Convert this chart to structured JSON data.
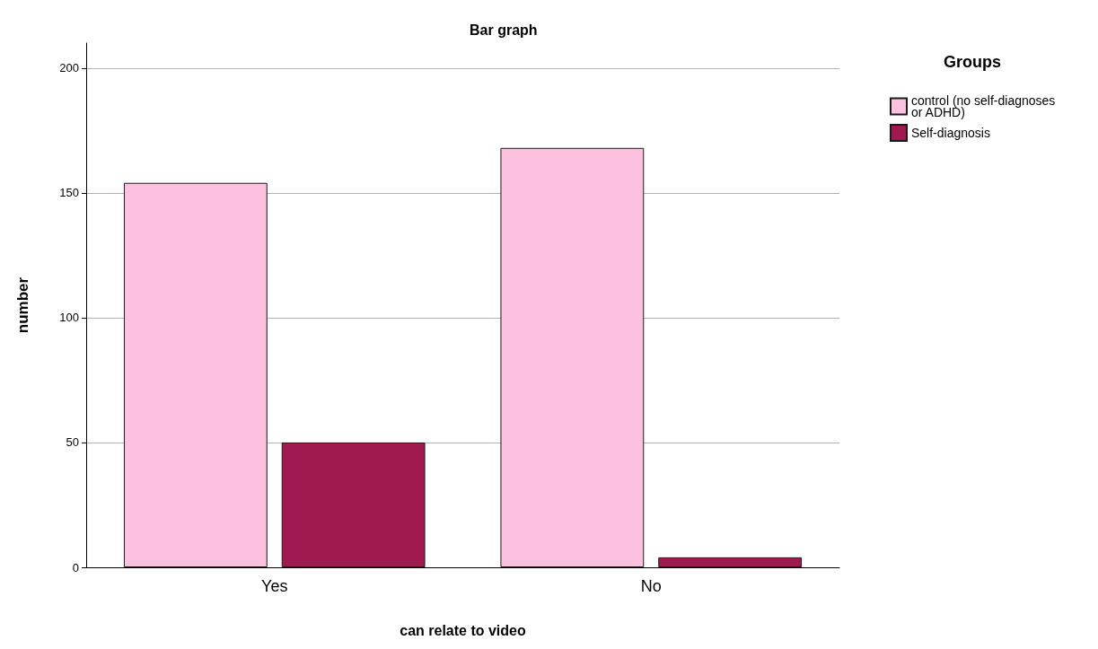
{
  "chart_data": {
    "type": "bar",
    "title": "Bar graph",
    "xlabel": "can relate to video",
    "ylabel": "number",
    "legend_title": "Groups",
    "categories": [
      "Yes",
      "No"
    ],
    "series": [
      {
        "name": "control (no self-diagnoses or ADHD)",
        "color": "#fdc1e0",
        "values": [
          154,
          168
        ]
      },
      {
        "name": "Self-diagnosis",
        "color": "#a0194f",
        "values": [
          50,
          4
        ]
      }
    ],
    "ylim": [
      0,
      210
    ],
    "yticks": [
      0,
      50,
      100,
      150,
      200
    ],
    "grid": "y",
    "legend": "top right"
  }
}
